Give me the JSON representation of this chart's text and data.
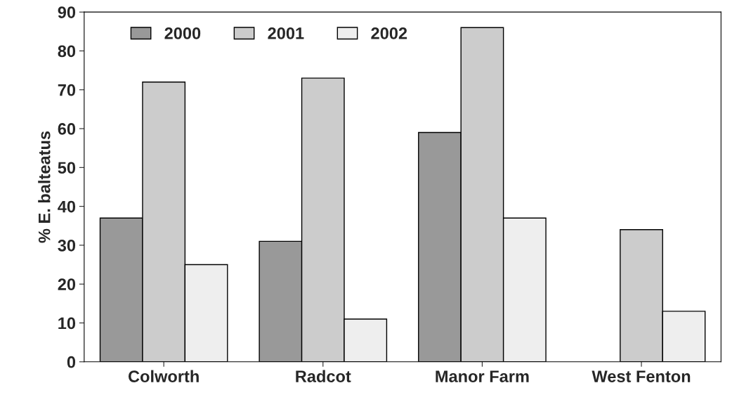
{
  "chart_data": {
    "type": "bar",
    "ylabel": "% E. balteatus",
    "categories": [
      "Colworth",
      "Radcot",
      "Manor Farm",
      "West Fenton"
    ],
    "series": [
      {
        "name": "2000",
        "color": "#999999",
        "values": [
          37,
          31,
          59,
          null
        ]
      },
      {
        "name": "2001",
        "color": "#cccccc",
        "values": [
          72,
          73,
          86,
          34
        ]
      },
      {
        "name": "2002",
        "color": "#eeeeee",
        "values": [
          25,
          11,
          37,
          13
        ]
      }
    ],
    "ylim": [
      0,
      90
    ],
    "yticks": [
      0,
      10,
      20,
      30,
      40,
      50,
      60,
      70,
      80,
      90
    ],
    "grid": false,
    "legend": "top left"
  }
}
